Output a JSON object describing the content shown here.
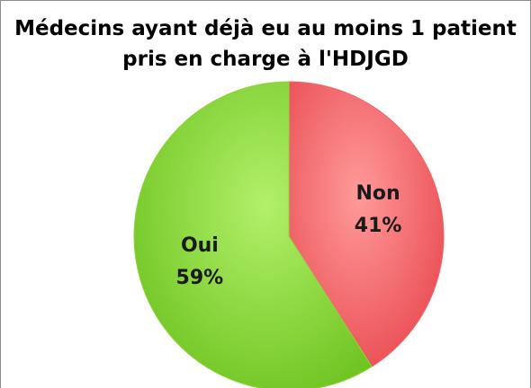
{
  "chart_data": {
    "type": "pie",
    "title": "Médecins ayant déjà eu au moins 1 patient pris en charge à l'HDJGD",
    "categories": [
      "Non",
      "Oui"
    ],
    "values": [
      41,
      59
    ],
    "value_labels": [
      "41%",
      "59%"
    ],
    "colors": [
      "#f0666a",
      "#8fd43c"
    ]
  }
}
